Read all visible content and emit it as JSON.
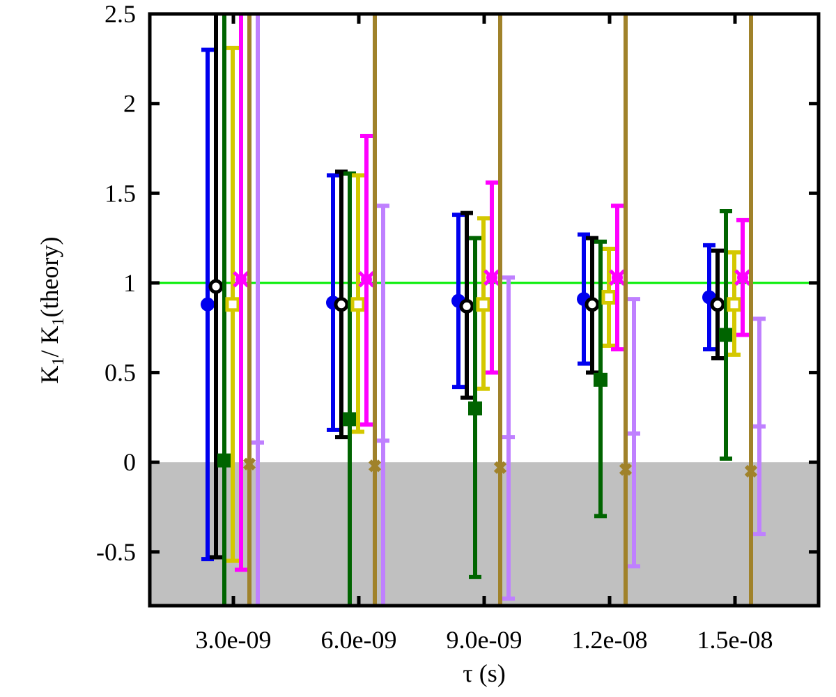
{
  "chart_data": {
    "type": "scatter",
    "title": "",
    "xlabel": "τ (s)",
    "ylabel_main": "K",
    "ylabel_sub": "1",
    "ylabel_mid": "/ K",
    "ylabel_sub2": "1",
    "ylabel_tail": "(theory)",
    "categories": [
      "3.0e-09",
      "6.0e-09",
      "9.0e-09",
      "1.2e-08",
      "1.5e-08"
    ],
    "ylim": [
      -0.8,
      2.5
    ],
    "yticks": [
      {
        "value": -0.5,
        "label": "-0.5"
      },
      {
        "value": 0,
        "label": "0"
      },
      {
        "value": 0.5,
        "label": "0.5"
      },
      {
        "value": 1,
        "label": "1"
      },
      {
        "value": 1.5,
        "label": "1.5"
      },
      {
        "value": 2,
        "label": "2"
      },
      {
        "value": 2.5,
        "label": "2.5"
      }
    ],
    "reference_line": {
      "value": 1.0,
      "color": "#00ee00"
    },
    "negative_region_color": "#c0c0c0",
    "grid": false,
    "series": [
      {
        "color": "#0000ee",
        "marker": "circle-filled",
        "values": [
          0.88,
          0.89,
          0.9,
          0.91,
          0.92
        ],
        "lower": [
          -0.54,
          0.18,
          0.42,
          0.55,
          0.63
        ],
        "upper": [
          2.3,
          1.6,
          1.38,
          1.27,
          1.21
        ]
      },
      {
        "color": "#000000",
        "marker": "circle-open",
        "values": [
          0.98,
          0.88,
          0.87,
          0.88,
          0.88
        ],
        "lower": [
          -0.53,
          0.14,
          0.36,
          0.5,
          0.58
        ],
        "upper": [
          2.5,
          1.62,
          1.39,
          1.25,
          1.18
        ]
      },
      {
        "color": "#006400",
        "marker": "square-filled",
        "values": [
          0.01,
          0.24,
          0.3,
          0.46,
          0.71
        ],
        "lower": [
          -0.8,
          -0.8,
          -0.64,
          -0.3,
          0.02
        ],
        "upper": [
          2.5,
          1.61,
          1.25,
          1.23,
          1.4
        ]
      },
      {
        "color": "#d4c800",
        "marker": "square-open",
        "values": [
          0.88,
          0.88,
          0.88,
          0.92,
          0.88
        ],
        "lower": [
          -0.55,
          0.17,
          0.41,
          0.65,
          0.6
        ],
        "upper": [
          2.31,
          1.6,
          1.36,
          1.19,
          1.17
        ]
      },
      {
        "color": "#ff00ff",
        "marker": "star-filled",
        "values": [
          1.02,
          1.02,
          1.03,
          1.03,
          1.03
        ],
        "lower": [
          -0.6,
          0.21,
          0.5,
          0.63,
          0.71
        ],
        "upper": [
          2.5,
          1.82,
          1.56,
          1.43,
          1.35
        ]
      },
      {
        "color": "#a0822a",
        "marker": "x-cross",
        "values": [
          -0.01,
          -0.02,
          -0.03,
          -0.04,
          -0.05
        ],
        "lower": [
          -0.8,
          -0.8,
          -0.8,
          -0.8,
          -0.8
        ],
        "upper": [
          2.5,
          2.5,
          2.5,
          2.5,
          2.5
        ]
      },
      {
        "color": "#bf80ff",
        "marker": "none",
        "values": [
          null,
          null,
          null,
          null,
          null
        ],
        "lower": [
          -0.8,
          -0.8,
          -0.76,
          -0.58,
          -0.4
        ],
        "upper": [
          2.5,
          1.43,
          1.03,
          0.91,
          0.8
        ],
        "inner": [
          0.11,
          0.12,
          0.14,
          0.16,
          0.2
        ]
      }
    ]
  }
}
